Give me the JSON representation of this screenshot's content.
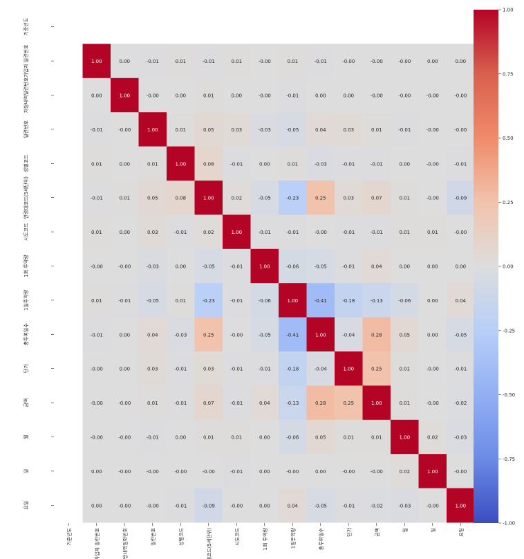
{
  "chart_data": {
    "type": "heatmap",
    "title": "",
    "xlabel": "",
    "ylabel": "",
    "labels": [
      "기준년도",
      "가입자 일련번호",
      "처방내역일련번호",
      "일련번호",
      "성별코드",
      "연령대코드(5세단위)",
      "시도코드",
      "1회 투약량",
      "1일투약량",
      "총투여일수",
      "단가",
      "금액",
      "월",
      "일",
      "요일"
    ],
    "row_labels": [
      "기준년도",
      "가입자 일련번호",
      "처방내역일련번호",
      "일련번호",
      "성별코드",
      "연령대코드(5세단위)",
      "시도코드",
      "1회 투약량",
      "1일투약량",
      "총투여일수",
      "단가",
      "금액",
      "월",
      "일",
      "요일"
    ],
    "col_labels": [
      "기준년도",
      "가입자 일련번호",
      "처방내역일련번호",
      "일련번호",
      "성별코드",
      "연령대코드(5세단위)",
      "시도코드",
      "1회 투약량",
      "1일투약량",
      "총투여일수",
      "단가",
      "금액",
      "월",
      "일",
      "요일"
    ],
    "matrix": [
      [
        null,
        null,
        null,
        null,
        null,
        null,
        null,
        null,
        null,
        null,
        null,
        null,
        null,
        null,
        null
      ],
      [
        null,
        1.0,
        0.0,
        -0.01,
        0.01,
        -0.01,
        0.01,
        -0.0,
        0.01,
        -0.01,
        -0.0,
        -0.0,
        -0.0,
        0.0,
        0.0
      ],
      [
        null,
        0.0,
        1.0,
        -0.0,
        0.0,
        0.01,
        0.0,
        -0.0,
        -0.01,
        0.0,
        0.0,
        -0.0,
        -0.0,
        -0.0,
        -0.0
      ],
      [
        null,
        -0.01,
        -0.0,
        1.0,
        0.01,
        0.05,
        0.03,
        -0.03,
        -0.05,
        0.04,
        0.03,
        0.01,
        -0.01,
        -0.0,
        -0.0
      ],
      [
        null,
        0.01,
        0.0,
        0.01,
        1.0,
        0.08,
        -0.01,
        0.0,
        0.01,
        -0.03,
        -0.01,
        -0.01,
        0.0,
        -0.0,
        -0.01
      ],
      [
        null,
        -0.01,
        0.01,
        0.05,
        0.08,
        1.0,
        0.02,
        -0.05,
        -0.23,
        0.25,
        0.03,
        0.07,
        0.01,
        -0.0,
        -0.09
      ],
      [
        null,
        0.01,
        0.0,
        0.03,
        -0.01,
        0.02,
        1.0,
        -0.01,
        -0.01,
        -0.0,
        -0.01,
        -0.01,
        0.01,
        0.01,
        -0.0
      ],
      [
        null,
        -0.0,
        -0.0,
        -0.03,
        0.0,
        -0.05,
        -0.01,
        1.0,
        -0.06,
        -0.05,
        -0.01,
        0.04,
        0.0,
        0.0,
        0.0
      ],
      [
        null,
        0.01,
        -0.01,
        -0.05,
        0.01,
        -0.23,
        -0.01,
        -0.06,
        1.0,
        -0.41,
        -0.18,
        -0.13,
        -0.06,
        0.0,
        0.04
      ],
      [
        null,
        -0.01,
        0.0,
        0.04,
        -0.03,
        0.25,
        -0.0,
        -0.05,
        -0.41,
        1.0,
        -0.04,
        0.28,
        0.05,
        0.0,
        -0.05
      ],
      [
        null,
        -0.0,
        0.0,
        0.03,
        -0.01,
        0.03,
        -0.01,
        -0.01,
        -0.18,
        -0.04,
        1.0,
        0.25,
        0.01,
        -0.0,
        -0.01
      ],
      [
        null,
        -0.0,
        -0.0,
        0.01,
        -0.01,
        0.07,
        -0.01,
        0.04,
        -0.13,
        0.28,
        0.25,
        1.0,
        0.01,
        -0.0,
        -0.02
      ],
      [
        null,
        -0.0,
        -0.0,
        -0.01,
        0.0,
        0.01,
        0.01,
        0.0,
        -0.06,
        0.05,
        0.01,
        0.01,
        1.0,
        0.02,
        -0.03
      ],
      [
        null,
        0.0,
        -0.0,
        -0.0,
        -0.0,
        -0.0,
        -0.01,
        0.0,
        -0.0,
        0.0,
        -0.0,
        -0.0,
        0.02,
        1.0,
        -0.0
      ],
      [
        null,
        0.0,
        -0.0,
        -0.0,
        -0.01,
        -0.09,
        -0.0,
        0.0,
        0.04,
        -0.05,
        -0.01,
        -0.02,
        -0.03,
        -0.0,
        1.0
      ]
    ],
    "vmin": -1.0,
    "vmax": 1.0,
    "colormap": "coolwarm",
    "colors": {
      "low": "#3b4cc0",
      "mid": "#dddddd",
      "high": "#b40426"
    },
    "colorbar_ticks": [
      "1.00",
      "0.75",
      "0.50",
      "0.25",
      "0.00",
      "-0.25",
      "-0.50",
      "-0.75",
      "-1.00"
    ],
    "colorbar_values": [
      1.0,
      0.75,
      0.5,
      0.25,
      0.0,
      -0.25,
      -0.5,
      -0.75,
      -1.0
    ],
    "legend": "right"
  }
}
